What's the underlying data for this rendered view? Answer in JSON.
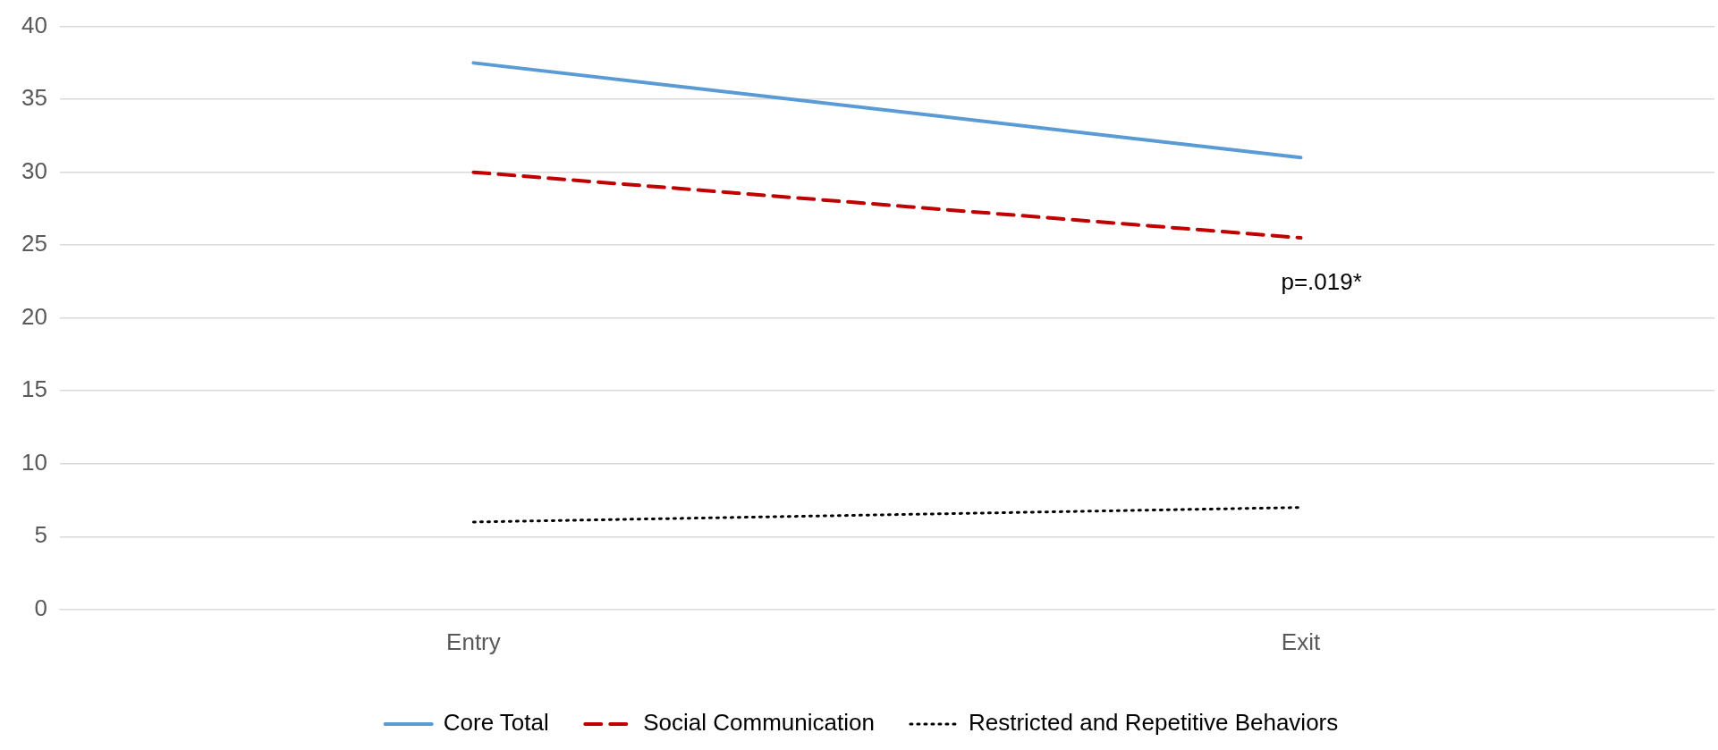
{
  "chart_data": {
    "type": "line",
    "categories": [
      "Entry",
      "Exit"
    ],
    "series": [
      {
        "name": "Core Total",
        "color": "#5b9bd5",
        "values": [
          37.5,
          31
        ],
        "line_style": "solid"
      },
      {
        "name": "Social Communication",
        "color": "#c00000",
        "values": [
          30,
          25.5
        ],
        "line_style": "dashed"
      },
      {
        "name": "Restricted and Repetitive Behaviors",
        "color": "#000000",
        "values": [
          6,
          7
        ],
        "line_style": "dotted"
      }
    ],
    "ylim": [
      0,
      40
    ],
    "yticks": [
      0,
      5,
      10,
      15,
      20,
      25,
      30,
      35,
      40
    ],
    "grid": "y",
    "legend": "bottom",
    "marker": "none",
    "annotations": [
      "p=.019*"
    ]
  }
}
